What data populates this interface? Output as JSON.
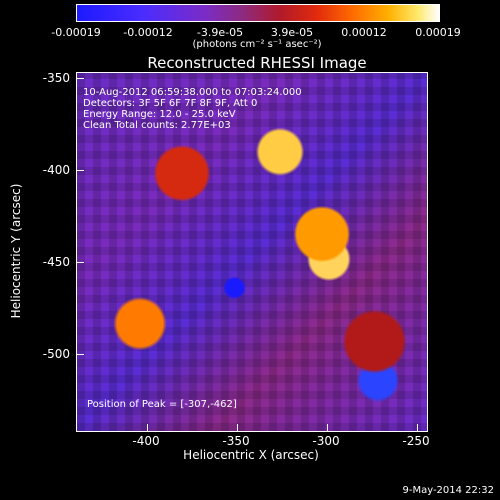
{
  "colorbar": {
    "ticks": [
      "-0.00019",
      "-0.00012",
      "-3.9e-05",
      "3.9e-05",
      "0.00012",
      "0.00019"
    ],
    "units": "(photons cm⁻² s⁻¹ asec⁻²)"
  },
  "title": "Reconstructed RHESSI Image",
  "info": {
    "line1": "10-Aug-2012 06:59:38.000 to 07:03:24.000",
    "line2": "Detectors: 3F 5F 6F 7F 8F 9F, Att 0",
    "line3": "Energy Range: 12.0 - 25.0 keV",
    "line4": "Clean    Total counts: 2.77E+03"
  },
  "peak": "Position of Peak = [-307,-462]",
  "axes": {
    "x_label": "Heliocentric X (arcsec)",
    "y_label": "Heliocentric Y (arcsec)",
    "x_ticks": [
      "-400",
      "-350",
      "-300",
      "-250"
    ],
    "y_ticks": [
      "-350",
      "-400",
      "-450",
      "-500"
    ]
  },
  "timestamp": "9-May-2014 22:32"
}
